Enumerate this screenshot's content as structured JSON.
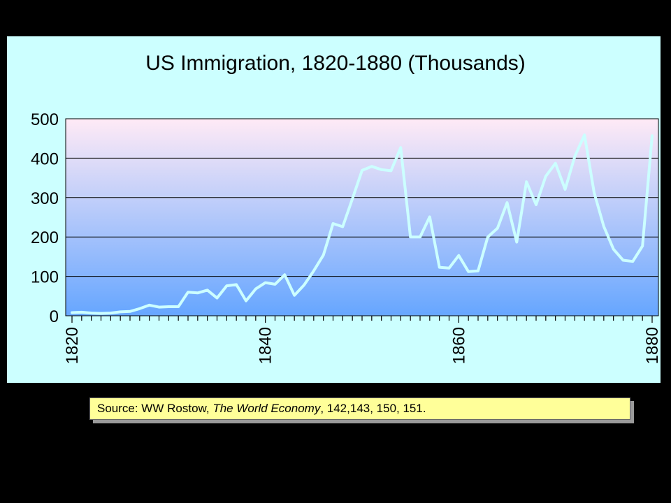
{
  "chart_data": {
    "type": "line",
    "title": "US Immigration, 1820-1880 (Thousands)",
    "xlabel": "",
    "ylabel": "",
    "xlim": [
      1820,
      1880
    ],
    "ylim": [
      0,
      500
    ],
    "yticks": [
      "0",
      "100",
      "200",
      "300",
      "400",
      "500"
    ],
    "xticks": [
      "1820",
      "1840",
      "1860",
      "1880"
    ],
    "grid": true,
    "legend": "none",
    "line_color": "#ccffff",
    "plot_gradient": [
      "#ffeaf6",
      "#66a6ff"
    ],
    "series": [
      {
        "x": [
          1820,
          1821,
          1822,
          1823,
          1824,
          1825,
          1826,
          1827,
          1828,
          1829,
          1830,
          1831,
          1832,
          1833,
          1834,
          1835,
          1836,
          1837,
          1838,
          1839,
          1840,
          1841,
          1842,
          1843,
          1844,
          1845,
          1846,
          1847,
          1848,
          1849,
          1850,
          1851,
          1852,
          1853,
          1854,
          1855,
          1856,
          1857,
          1858,
          1859,
          1860,
          1861,
          1862,
          1863,
          1864,
          1865,
          1866,
          1867,
          1868,
          1869,
          1870,
          1871,
          1872,
          1873,
          1874,
          1875,
          1876,
          1877,
          1878,
          1879,
          1880
        ],
        "values": [
          8,
          9,
          7,
          6,
          7,
          10,
          11,
          18,
          27,
          22,
          23,
          23,
          60,
          58,
          65,
          45,
          76,
          79,
          38,
          68,
          84,
          80,
          104,
          52,
          78,
          114,
          154,
          234,
          226,
          297,
          369,
          379,
          371,
          368,
          427,
          200,
          200,
          251,
          123,
          121,
          153,
          112,
          114,
          200,
          222,
          287,
          187,
          340,
          282,
          354,
          387,
          321,
          404,
          459,
          313,
          227,
          169,
          141,
          138,
          177,
          457
        ]
      }
    ]
  },
  "source": {
    "prefix": "Source:  WW Rostow, ",
    "book": "The World Economy",
    "suffix": ", 142,143, 150, 151."
  }
}
